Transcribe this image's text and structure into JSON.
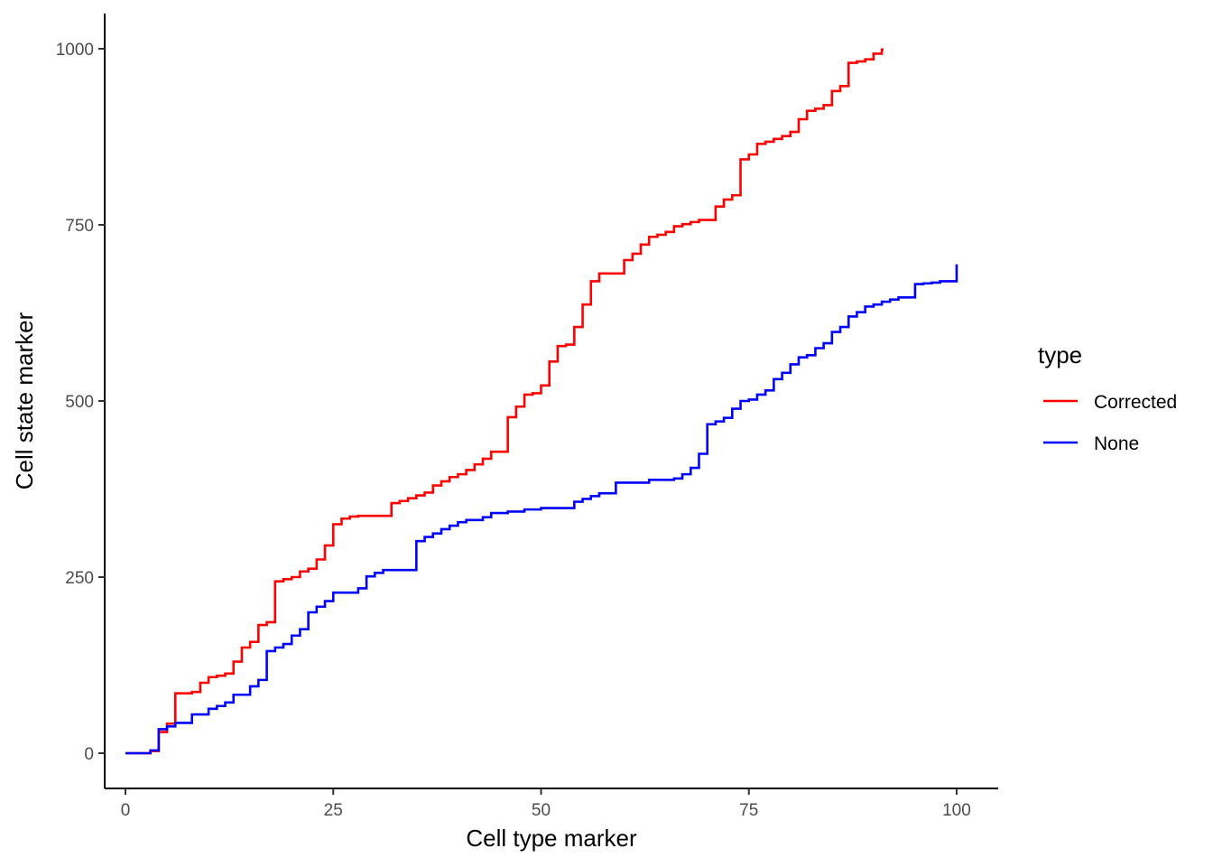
{
  "chart_data": {
    "type": "line",
    "step": true,
    "title": "",
    "xlabel": "Cell type marker",
    "ylabel": "Cell state marker",
    "xlim": [
      -2.5,
      105
    ],
    "ylim": [
      -50,
      1050
    ],
    "x_ticks": [
      0,
      25,
      50,
      75,
      100
    ],
    "y_ticks": [
      0,
      250,
      500,
      750,
      1000
    ],
    "x_tick_labels": [
      "0",
      "25",
      "50",
      "75",
      "100"
    ],
    "y_tick_labels": [
      "0",
      "250",
      "500",
      "750",
      "1000"
    ],
    "grid": false,
    "legend": {
      "title": "type",
      "position": "right"
    },
    "series": [
      {
        "name": "Corrected",
        "color": "#ff0000",
        "points": [
          [
            0,
            0
          ],
          [
            3,
            0
          ],
          [
            3,
            3
          ],
          [
            4,
            3
          ],
          [
            4,
            30
          ],
          [
            5,
            30
          ],
          [
            5,
            42
          ],
          [
            6,
            42
          ],
          [
            6,
            85
          ],
          [
            8,
            85
          ],
          [
            8,
            87
          ],
          [
            9,
            87
          ],
          [
            9,
            100
          ],
          [
            10,
            100
          ],
          [
            10,
            108
          ],
          [
            11,
            108
          ],
          [
            11,
            110
          ],
          [
            12,
            110
          ],
          [
            12,
            113
          ],
          [
            13,
            113
          ],
          [
            13,
            130
          ],
          [
            14,
            130
          ],
          [
            14,
            150
          ],
          [
            15,
            150
          ],
          [
            15,
            158
          ],
          [
            16,
            158
          ],
          [
            16,
            182
          ],
          [
            17,
            182
          ],
          [
            17,
            186
          ],
          [
            18,
            186
          ],
          [
            18,
            244
          ],
          [
            19,
            244
          ],
          [
            19,
            247
          ],
          [
            20,
            247
          ],
          [
            20,
            250
          ],
          [
            21,
            250
          ],
          [
            21,
            258
          ],
          [
            22,
            258
          ],
          [
            22,
            262
          ],
          [
            23,
            262
          ],
          [
            23,
            275
          ],
          [
            24,
            275
          ],
          [
            24,
            295
          ],
          [
            25,
            295
          ],
          [
            25,
            325
          ],
          [
            26,
            325
          ],
          [
            26,
            333
          ],
          [
            27,
            333
          ],
          [
            27,
            336
          ],
          [
            28,
            336
          ],
          [
            28,
            337
          ],
          [
            32,
            337
          ],
          [
            32,
            355
          ],
          [
            33,
            355
          ],
          [
            33,
            358
          ],
          [
            34,
            358
          ],
          [
            34,
            362
          ],
          [
            35,
            362
          ],
          [
            35,
            366
          ],
          [
            36,
            366
          ],
          [
            36,
            370
          ],
          [
            37,
            370
          ],
          [
            37,
            380
          ],
          [
            38,
            380
          ],
          [
            38,
            386
          ],
          [
            39,
            386
          ],
          [
            39,
            392
          ],
          [
            40,
            392
          ],
          [
            40,
            396
          ],
          [
            41,
            396
          ],
          [
            41,
            402
          ],
          [
            42,
            402
          ],
          [
            42,
            410
          ],
          [
            43,
            410
          ],
          [
            43,
            418
          ],
          [
            44,
            418
          ],
          [
            44,
            428
          ],
          [
            46,
            428
          ],
          [
            46,
            477
          ],
          [
            47,
            477
          ],
          [
            47,
            492
          ],
          [
            48,
            492
          ],
          [
            48,
            509
          ],
          [
            49,
            509
          ],
          [
            49,
            511
          ],
          [
            50,
            511
          ],
          [
            50,
            522
          ],
          [
            51,
            522
          ],
          [
            51,
            556
          ],
          [
            52,
            556
          ],
          [
            52,
            578
          ],
          [
            53,
            578
          ],
          [
            53,
            580
          ],
          [
            54,
            580
          ],
          [
            54,
            605
          ],
          [
            55,
            605
          ],
          [
            55,
            637
          ],
          [
            56,
            637
          ],
          [
            56,
            670
          ],
          [
            57,
            670
          ],
          [
            57,
            681
          ],
          [
            60,
            681
          ],
          [
            60,
            700
          ],
          [
            61,
            700
          ],
          [
            61,
            709
          ],
          [
            62,
            709
          ],
          [
            62,
            722
          ],
          [
            63,
            722
          ],
          [
            63,
            733
          ],
          [
            64,
            733
          ],
          [
            64,
            736
          ],
          [
            65,
            736
          ],
          [
            65,
            740
          ],
          [
            66,
            740
          ],
          [
            66,
            748
          ],
          [
            67,
            748
          ],
          [
            67,
            751
          ],
          [
            68,
            751
          ],
          [
            68,
            754
          ],
          [
            69,
            754
          ],
          [
            69,
            757
          ],
          [
            71,
            757
          ],
          [
            71,
            776
          ],
          [
            72,
            776
          ],
          [
            72,
            786
          ],
          [
            73,
            786
          ],
          [
            73,
            792
          ],
          [
            74,
            792
          ],
          [
            74,
            843
          ],
          [
            75,
            843
          ],
          [
            75,
            850
          ],
          [
            76,
            850
          ],
          [
            76,
            865
          ],
          [
            77,
            865
          ],
          [
            77,
            868
          ],
          [
            78,
            868
          ],
          [
            78,
            872
          ],
          [
            79,
            872
          ],
          [
            79,
            876
          ],
          [
            80,
            876
          ],
          [
            80,
            882
          ],
          [
            81,
            882
          ],
          [
            81,
            900
          ],
          [
            82,
            900
          ],
          [
            82,
            912
          ],
          [
            83,
            912
          ],
          [
            83,
            915
          ],
          [
            84,
            915
          ],
          [
            84,
            920
          ],
          [
            85,
            920
          ],
          [
            85,
            940
          ],
          [
            86,
            940
          ],
          [
            86,
            947
          ],
          [
            87,
            947
          ],
          [
            87,
            980
          ],
          [
            88,
            980
          ],
          [
            88,
            982
          ],
          [
            89,
            982
          ],
          [
            89,
            985
          ],
          [
            90,
            985
          ],
          [
            90,
            993
          ],
          [
            91,
            993
          ],
          [
            91,
            999
          ],
          [
            91.2,
            999
          ]
        ]
      },
      {
        "name": "None",
        "color": "#0000ff",
        "points": [
          [
            0,
            0
          ],
          [
            3,
            0
          ],
          [
            3,
            4
          ],
          [
            4,
            4
          ],
          [
            4,
            34
          ],
          [
            5,
            34
          ],
          [
            5,
            38
          ],
          [
            6,
            38
          ],
          [
            6,
            43
          ],
          [
            8,
            43
          ],
          [
            8,
            55
          ],
          [
            10,
            55
          ],
          [
            10,
            63
          ],
          [
            11,
            63
          ],
          [
            11,
            67
          ],
          [
            12,
            67
          ],
          [
            12,
            72
          ],
          [
            13,
            72
          ],
          [
            13,
            83
          ],
          [
            15,
            83
          ],
          [
            15,
            95
          ],
          [
            16,
            95
          ],
          [
            16,
            104
          ],
          [
            17,
            104
          ],
          [
            17,
            145
          ],
          [
            18,
            145
          ],
          [
            18,
            150
          ],
          [
            19,
            150
          ],
          [
            19,
            155
          ],
          [
            20,
            155
          ],
          [
            20,
            167
          ],
          [
            21,
            167
          ],
          [
            21,
            176
          ],
          [
            22,
            176
          ],
          [
            22,
            200
          ],
          [
            23,
            200
          ],
          [
            23,
            208
          ],
          [
            24,
            208
          ],
          [
            24,
            216
          ],
          [
            25,
            216
          ],
          [
            25,
            228
          ],
          [
            28,
            228
          ],
          [
            28,
            234
          ],
          [
            29,
            234
          ],
          [
            29,
            251
          ],
          [
            30,
            251
          ],
          [
            30,
            256
          ],
          [
            31,
            256
          ],
          [
            31,
            260
          ],
          [
            35,
            260
          ],
          [
            35,
            301
          ],
          [
            36,
            301
          ],
          [
            36,
            307
          ],
          [
            37,
            307
          ],
          [
            37,
            312
          ],
          [
            38,
            312
          ],
          [
            38,
            318
          ],
          [
            39,
            318
          ],
          [
            39,
            323
          ],
          [
            40,
            323
          ],
          [
            40,
            328
          ],
          [
            41,
            328
          ],
          [
            41,
            331
          ],
          [
            43,
            331
          ],
          [
            43,
            335
          ],
          [
            44,
            335
          ],
          [
            44,
            341
          ],
          [
            46,
            341
          ],
          [
            46,
            343
          ],
          [
            48,
            343
          ],
          [
            48,
            346
          ],
          [
            50,
            346
          ],
          [
            50,
            348
          ],
          [
            54,
            348
          ],
          [
            54,
            357
          ],
          [
            55,
            357
          ],
          [
            55,
            361
          ],
          [
            56,
            361
          ],
          [
            56,
            365
          ],
          [
            57,
            365
          ],
          [
            57,
            369
          ],
          [
            59,
            369
          ],
          [
            59,
            384
          ],
          [
            63,
            384
          ],
          [
            63,
            388
          ],
          [
            66,
            388
          ],
          [
            66,
            390
          ],
          [
            67,
            390
          ],
          [
            67,
            396
          ],
          [
            68,
            396
          ],
          [
            68,
            405
          ],
          [
            69,
            405
          ],
          [
            69,
            425
          ],
          [
            70,
            425
          ],
          [
            70,
            467
          ],
          [
            71,
            467
          ],
          [
            71,
            471
          ],
          [
            72,
            471
          ],
          [
            72,
            476
          ],
          [
            73,
            476
          ],
          [
            73,
            489
          ],
          [
            74,
            489
          ],
          [
            74,
            500
          ],
          [
            75,
            500
          ],
          [
            75,
            502
          ],
          [
            76,
            502
          ],
          [
            76,
            509
          ],
          [
            77,
            509
          ],
          [
            77,
            515
          ],
          [
            78,
            515
          ],
          [
            78,
            531
          ],
          [
            79,
            531
          ],
          [
            79,
            540
          ],
          [
            80,
            540
          ],
          [
            80,
            552
          ],
          [
            81,
            552
          ],
          [
            81,
            562
          ],
          [
            82,
            562
          ],
          [
            82,
            565
          ],
          [
            83,
            565
          ],
          [
            83,
            575
          ],
          [
            84,
            575
          ],
          [
            84,
            582
          ],
          [
            85,
            582
          ],
          [
            85,
            598
          ],
          [
            86,
            598
          ],
          [
            86,
            605
          ],
          [
            87,
            605
          ],
          [
            87,
            620
          ],
          [
            88,
            620
          ],
          [
            88,
            626
          ],
          [
            89,
            626
          ],
          [
            89,
            634
          ],
          [
            90,
            634
          ],
          [
            90,
            637
          ],
          [
            91,
            637
          ],
          [
            91,
            641
          ],
          [
            92,
            641
          ],
          [
            92,
            644
          ],
          [
            93,
            644
          ],
          [
            93,
            647
          ],
          [
            95,
            647
          ],
          [
            95,
            666
          ],
          [
            96,
            666
          ],
          [
            96,
            667
          ],
          [
            97,
            667
          ],
          [
            97,
            668
          ],
          [
            98,
            668
          ],
          [
            98,
            670
          ],
          [
            100,
            670
          ],
          [
            100,
            694
          ]
        ]
      }
    ]
  }
}
